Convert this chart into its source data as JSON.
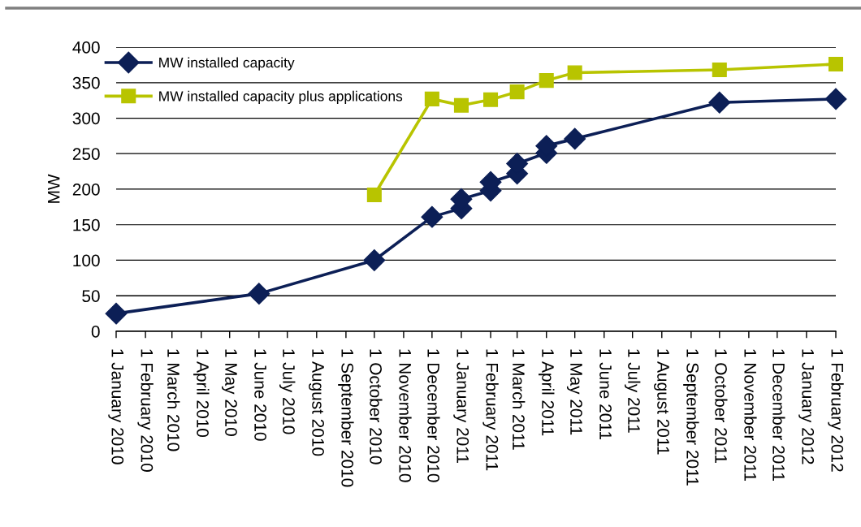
{
  "chart_data": {
    "type": "line",
    "ylabel": "MW",
    "xlim": [
      "2010-01-01",
      "2012-02-01"
    ],
    "xticks": [
      {
        "value": "2010-01-01",
        "label": "1 January 2010"
      },
      {
        "value": "2010-02-01",
        "label": "1 February 2010"
      },
      {
        "value": "2010-03-01",
        "label": "1 March 2010"
      },
      {
        "value": "2010-04-01",
        "label": "1 April 2010"
      },
      {
        "value": "2010-05-01",
        "label": "1 May 2010"
      },
      {
        "value": "2010-06-01",
        "label": "1 June 2010"
      },
      {
        "value": "2010-07-01",
        "label": "1 July 2010"
      },
      {
        "value": "2010-08-01",
        "label": "1 August 2010"
      },
      {
        "value": "2010-09-01",
        "label": "1 September 2010"
      },
      {
        "value": "2010-10-01",
        "label": "1 October 2010"
      },
      {
        "value": "2010-11-01",
        "label": "1 November 2010"
      },
      {
        "value": "2010-12-01",
        "label": "1 December 2010"
      },
      {
        "value": "2011-01-01",
        "label": "1 January 2011"
      },
      {
        "value": "2011-02-01",
        "label": "1 February 2011"
      },
      {
        "value": "2011-03-01",
        "label": "1 March 2011"
      },
      {
        "value": "2011-04-01",
        "label": "1 April 2011"
      },
      {
        "value": "2011-05-01",
        "label": "1 May 2011"
      },
      {
        "value": "2011-06-01",
        "label": "1 June 2011"
      },
      {
        "value": "2011-07-01",
        "label": "1 July 2011"
      },
      {
        "value": "2011-08-01",
        "label": "1 August 2011"
      },
      {
        "value": "2011-09-01",
        "label": "1 September 2011"
      },
      {
        "value": "2011-10-01",
        "label": "1 October 2011"
      },
      {
        "value": "2011-11-01",
        "label": "1 November 2011"
      },
      {
        "value": "2011-12-01",
        "label": "1 December 2011"
      },
      {
        "value": "2012-01-01",
        "label": "1 January 2012"
      },
      {
        "value": "2012-02-01",
        "label": "1 February 2012"
      }
    ],
    "ylim": [
      0,
      400
    ],
    "yticks": [
      0,
      50,
      100,
      150,
      200,
      250,
      300,
      350,
      400
    ],
    "grid": "y",
    "legend": "top left",
    "series": [
      {
        "name": "MW installed capacity",
        "color": "#0c1f56",
        "marker": "diamond",
        "x": [
          "2010-01-01",
          "2010-06-01",
          "2010-10-01",
          "2010-12-01",
          "2011-01-01",
          "2011-01-01",
          "2011-02-01",
          "2011-02-01",
          "2011-03-01",
          "2011-03-01",
          "2011-04-01",
          "2011-04-01",
          "2011-05-01",
          "2011-10-01",
          "2012-02-01"
        ],
        "values": [
          25,
          53,
          100,
          161,
          173,
          186,
          198,
          210,
          222,
          236,
          251,
          261,
          271,
          322,
          327
        ]
      },
      {
        "name": "MW installed capacity plus applications",
        "color": "#b8c400",
        "marker": "square",
        "x": [
          "2010-10-01",
          "2010-12-01",
          "2011-01-01",
          "2011-02-01",
          "2011-03-01",
          "2011-04-01",
          "2011-05-01",
          "2011-10-01",
          "2012-02-01"
        ],
        "values": [
          192,
          327,
          318,
          326,
          337,
          353,
          364,
          368,
          376
        ]
      }
    ]
  }
}
